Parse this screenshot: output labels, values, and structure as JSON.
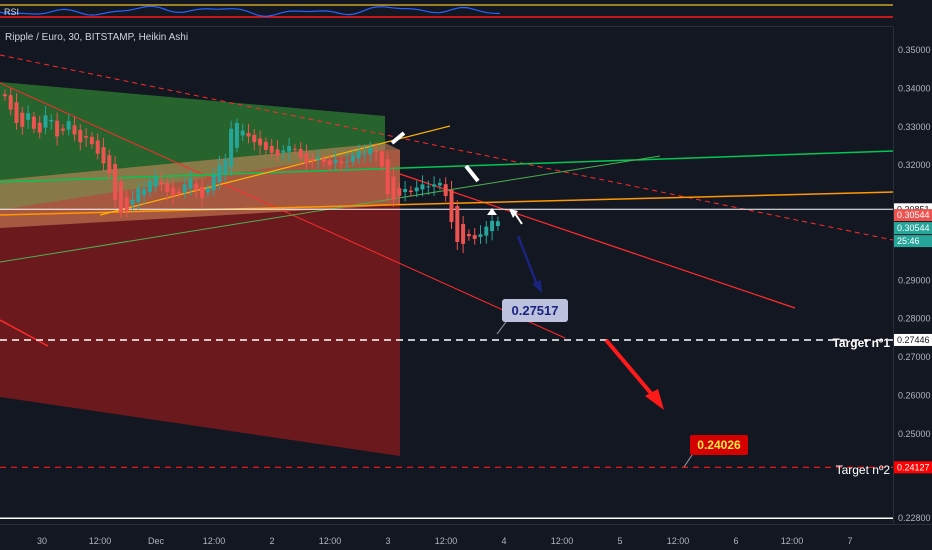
{
  "header": {
    "rsi_label": "RSI",
    "symbol_title": "Ripple / Euro, 30, BITSTAMP, Heikin Ashi"
  },
  "colors": {
    "background": "#131722",
    "up_candle": "#26a69a",
    "down_candle": "#ef5350",
    "support_line": "#ffffff",
    "target_line": "#ff0000",
    "rsi_line": "#2962ff",
    "green_zone": "#2e7d32",
    "red_zone": "#c62828"
  },
  "price_axis": {
    "ticks": [
      "0.35000",
      "0.34000",
      "0.33000",
      "0.32000",
      "0.29000",
      "0.28000",
      "0.27000",
      "0.26000",
      "0.25000",
      "0.22800"
    ],
    "badges": [
      {
        "text": "0.30851",
        "value": 0.30851,
        "bg": "#ffffff",
        "fg": "#131722"
      },
      {
        "text": "0.30544",
        "value": 0.30544,
        "bg": "#ef5350",
        "fg": "#ffffff"
      },
      {
        "text": "0.30544",
        "value": 0.30544,
        "bg": "#26a69a",
        "fg": "#ffffff"
      },
      {
        "text": "25:46",
        "value": 0.30544,
        "bg": "#26a69a",
        "fg": "#ffffff"
      },
      {
        "text": "0.27446",
        "value": 0.27446,
        "bg": "#ffffff",
        "fg": "#131722"
      },
      {
        "text": "0.24127",
        "value": 0.24127,
        "bg": "#ff0000",
        "fg": "#ffffff"
      }
    ]
  },
  "time_axis": {
    "labels": [
      "30",
      "12:00",
      "Dec",
      "12:00",
      "2",
      "12:00",
      "3",
      "12:00",
      "4",
      "12:00",
      "5",
      "12:00",
      "6",
      "12:00",
      "7"
    ]
  },
  "annotations": {
    "callout_1": "0.27517",
    "callout_2": "0.24026",
    "target_1": "Target nº1",
    "target_2": "Target nº2"
  },
  "chart_data": {
    "type": "candlestick",
    "title": "Ripple / Euro, 30, BITSTAMP, Heikin Ashi",
    "ylim": [
      0.2265,
      0.3555
    ],
    "close_series": [
      0.338,
      0.3345,
      0.331,
      0.33,
      0.3335,
      0.3295,
      0.3285,
      0.333,
      0.3318,
      0.3275,
      0.329,
      0.3315,
      0.328,
      0.326,
      0.3272,
      0.3255,
      0.323,
      0.3205,
      0.318,
      0.311,
      0.3075,
      0.308,
      0.311,
      0.314,
      0.3138,
      0.3158,
      0.317,
      0.315,
      0.313,
      0.312,
      0.3125,
      0.315,
      0.3165,
      0.3135,
      0.3115,
      0.314,
      0.3175,
      0.32,
      0.3215,
      0.3295,
      0.331,
      0.329,
      0.3275,
      0.326,
      0.3252,
      0.324,
      0.3232,
      0.3225,
      0.3238,
      0.325,
      0.3242,
      0.3218,
      0.3205,
      0.3212,
      0.322,
      0.3208,
      0.32,
      0.3214,
      0.3206,
      0.321,
      0.3226,
      0.3236,
      0.323,
      0.3246,
      0.3234,
      0.3196,
      0.3124,
      0.311,
      0.312,
      0.3138,
      0.313,
      0.3142,
      0.315,
      0.3145,
      0.315,
      0.3154,
      0.312,
      0.3052,
      0.3,
      0.2995,
      0.3015,
      0.3008,
      0.302,
      0.304,
      0.3055,
      0.3054
    ],
    "levels": {
      "resistance": 0.30851,
      "last_price": 0.30544,
      "target_1": 0.27446,
      "target_2": 0.24127,
      "support": 0.228
    },
    "callouts": [
      0.27517,
      0.24026
    ]
  }
}
